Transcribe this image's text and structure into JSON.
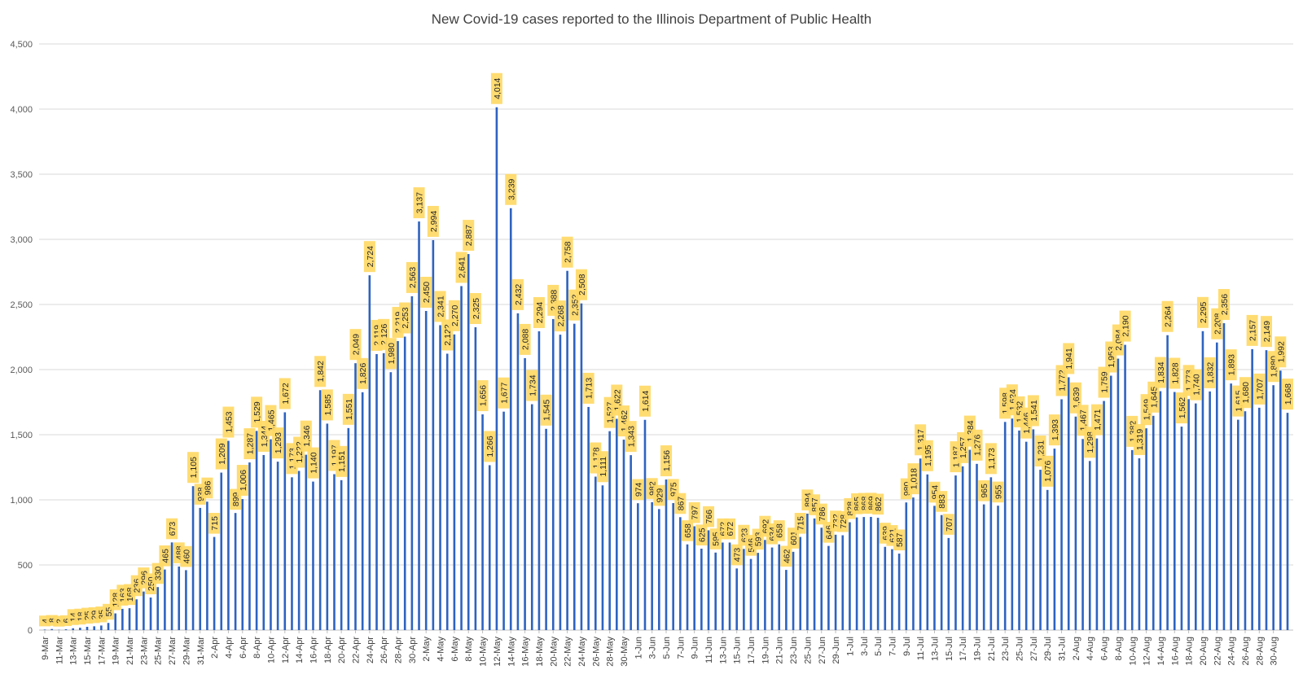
{
  "chart_data": {
    "type": "bar",
    "title": "New Covid-19 cases reported to the Illinois Department of Public Health",
    "xlabel": "",
    "ylabel": "",
    "ylim": [
      0,
      4500
    ],
    "yticks": [
      "0",
      "500",
      "1,000",
      "1,500",
      "2,000",
      "2,500",
      "3,000",
      "3,500",
      "4,000",
      "4,500"
    ],
    "ytick_values": [
      0,
      500,
      1000,
      1500,
      2000,
      2500,
      3000,
      3500,
      4000,
      4500
    ],
    "grid": true,
    "bar_color": "#2E63C0",
    "label_bg_color": "#FFD966",
    "x_tick_labels": [
      "9-Mar",
      "11-Mar",
      "13-Mar",
      "15-Mar",
      "17-Mar",
      "19-Mar",
      "21-Mar",
      "23-Mar",
      "25-Mar",
      "27-Mar",
      "29-Mar",
      "31-Mar",
      "2-Apr",
      "4-Apr",
      "6-Apr",
      "8-Apr",
      "10-Apr",
      "12-Apr",
      "14-Apr",
      "16-Apr",
      "18-Apr",
      "20-Apr",
      "22-Apr",
      "24-Apr",
      "26-Apr",
      "28-Apr",
      "30-Apr",
      "2-May",
      "4-May",
      "6-May",
      "8-May",
      "10-May",
      "12-May",
      "14-May",
      "16-May",
      "18-May",
      "20-May",
      "22-May",
      "24-May",
      "26-May",
      "28-May",
      "30-May",
      "1-Jun",
      "3-Jun",
      "5-Jun",
      "7-Jun",
      "9-Jun",
      "11-Jun",
      "13-Jun",
      "15-Jun",
      "17-Jun",
      "19-Jun",
      "21-Jun",
      "23-Jun",
      "25-Jun",
      "27-Jun",
      "29-Jun",
      "1-Jul",
      "3-Jul",
      "5-Jul",
      "7-Jul",
      "9-Jul",
      "11-Jul",
      "13-Jul",
      "15-Jul",
      "17-Jul",
      "19-Jul",
      "21-Jul",
      "23-Jul",
      "25-Jul",
      "27-Jul",
      "29-Jul",
      "31-Jul",
      "2-Aug",
      "4-Aug",
      "6-Aug",
      "8-Aug",
      "10-Aug",
      "12-Aug",
      "14-Aug",
      "16-Aug",
      "18-Aug",
      "20-Aug",
      "22-Aug",
      "24-Aug",
      "26-Aug",
      "28-Aug",
      "30-Aug"
    ],
    "values": [
      4,
      8,
      2,
      6,
      14,
      18,
      25,
      29,
      35,
      55,
      128,
      163,
      168,
      236,
      296,
      250,
      330,
      465,
      673,
      488,
      460,
      1105,
      938,
      986,
      715,
      1209,
      1453,
      899,
      1006,
      1287,
      1529,
      1344,
      1465,
      1293,
      1672,
      1173,
      1222,
      1346,
      1140,
      1842,
      1585,
      1197,
      1151,
      1551,
      2049,
      1826,
      2724,
      2119,
      2126,
      1980,
      2219,
      2253,
      2563,
      3137,
      2450,
      2994,
      2341,
      2122,
      2270,
      2641,
      2887,
      2325,
      1656,
      1266,
      4014,
      1677,
      3239,
      2432,
      2088,
      1734,
      2294,
      1545,
      2388,
      2268,
      2758,
      2352,
      2508,
      1713,
      1178,
      1111,
      1527,
      1622,
      1462,
      1343,
      974,
      1614,
      982,
      929,
      1156,
      975,
      867,
      658,
      797,
      625,
      766,
      595,
      672,
      672,
      473,
      623,
      546,
      593,
      692,
      634,
      658,
      462,
      601,
      715,
      894,
      857,
      786,
      646,
      732,
      728,
      828,
      865,
      868,
      869,
      862,
      639,
      621,
      587,
      980,
      1018,
      1317,
      1195,
      954,
      883,
      707,
      1187,
      1257,
      1384,
      1276,
      965,
      1173,
      955,
      1598,
      1624,
      1532,
      1446,
      1541,
      1231,
      1076,
      1393,
      1772,
      1941,
      1639,
      1467,
      1298,
      1471,
      1759,
      1953,
      2084,
      2190,
      1382,
      1319,
      1549,
      1645,
      1834,
      2264,
      1828,
      1562,
      1773,
      1740,
      2295,
      1832,
      2208,
      2356,
      1893,
      1615,
      1680,
      2157,
      1707,
      2149,
      1880,
      1992,
      1668
    ]
  }
}
